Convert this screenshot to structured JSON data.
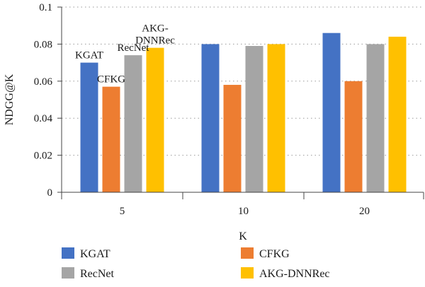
{
  "chart_data": {
    "type": "bar",
    "title": "",
    "xlabel": "K",
    "ylabel": "NDGG@K",
    "categories": [
      "5",
      "10",
      "20"
    ],
    "ylim": [
      0,
      0.1
    ],
    "yticks": [
      "0",
      "0.02",
      "0.04",
      "0.06",
      "0.08",
      "0.1"
    ],
    "grid": "dotted horizontal",
    "legend": "bottom",
    "series": [
      {
        "name": "KGAT",
        "color": "#4472C4",
        "values": [
          0.07,
          0.08,
          0.086
        ]
      },
      {
        "name": "CFKG",
        "color": "#ED7D31",
        "values": [
          0.057,
          0.058,
          0.06
        ]
      },
      {
        "name": "RecNet",
        "color": "#A5A5A5",
        "values": [
          0.074,
          0.079,
          0.08
        ]
      },
      {
        "name": "AKG-DNNRec",
        "color": "#FFC000",
        "values": [
          0.078,
          0.08,
          0.084
        ]
      }
    ],
    "annotations": [
      {
        "series": 0,
        "category": 0,
        "lines": [
          "KGAT"
        ]
      },
      {
        "series": 1,
        "category": 0,
        "lines": [
          "CFKG"
        ]
      },
      {
        "series": 2,
        "category": 0,
        "lines": [
          "RecNet"
        ]
      },
      {
        "series": 3,
        "category": 0,
        "lines": [
          "AKG-",
          "DNNRec"
        ]
      }
    ]
  }
}
